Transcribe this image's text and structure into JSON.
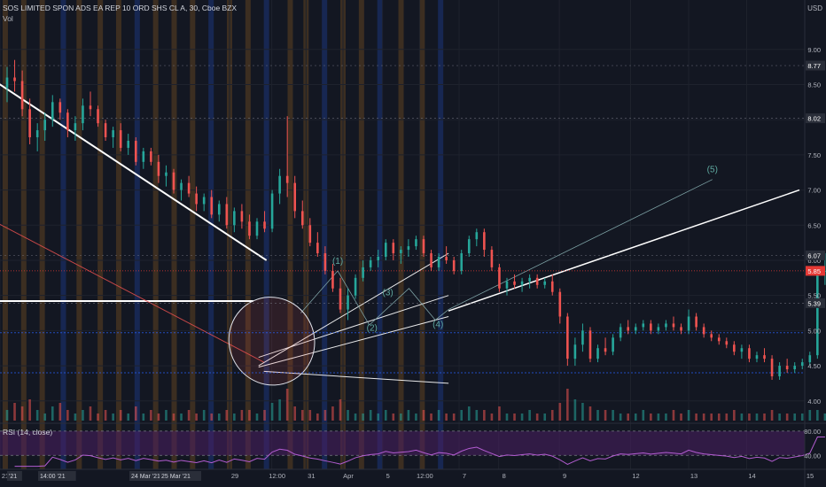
{
  "header": {
    "symbol_text": "SOS LIMITED SPON ADS EA REP 10 ORD SHS CL A, 30, Cboe BZX",
    "volume_label": "Vol",
    "currency": "USD",
    "rsi_label": "RSI (14, close)"
  },
  "colors": {
    "background": "#131722",
    "up": "#26a69a",
    "down": "#ef5350",
    "session_orange": "#e08a1e",
    "session_blue": "#2962ff",
    "rsi_line": "#b35cd1",
    "rsi_band": "#4a1f63",
    "trendline": "#ffffff",
    "wave_line": "#7ea3a6",
    "wave_label": "#5fa9a0",
    "price_tag": "#e53935",
    "neutral_tag": "#2a2e39"
  },
  "chart_data": [
    {
      "type": "candlestick",
      "price_axis": {
        "range": [
          3.72,
          9.35
        ],
        "ticks": [
          "9.00",
          "8.50",
          "8.00",
          "7.50",
          "7.00",
          "6.50",
          "6.00",
          "5.50",
          "5.00",
          "4.50",
          "4.00"
        ],
        "tagged_levels": [
          {
            "label": "8.77",
            "value": 8.77,
            "kind": "neutral"
          },
          {
            "label": "8.02",
            "value": 8.02,
            "kind": "neutral"
          },
          {
            "label": "6.07",
            "value": 6.07,
            "kind": "neutral"
          },
          {
            "label": "5.85",
            "value": 5.85,
            "kind": "last"
          },
          {
            "label": "5.39",
            "value": 5.39,
            "kind": "neutral"
          }
        ]
      },
      "time_axis": {
        "range": [
          0,
          305
        ],
        "ticks": [
          {
            "label": "21",
            "t": 0
          },
          {
            "label": "29",
            "t": 87
          },
          {
            "label": "12:00",
            "t": 103
          },
          {
            "label": "31",
            "t": 116
          },
          {
            "label": "Apr",
            "t": 130
          },
          {
            "label": "5",
            "t": 145
          },
          {
            "label": "12:00",
            "t": 159
          },
          {
            "label": "7",
            "t": 174
          },
          {
            "label": "8",
            "t": 189
          },
          {
            "label": "9",
            "t": 212
          },
          {
            "label": "12",
            "t": 239
          },
          {
            "label": "13",
            "t": 261
          },
          {
            "label": "14",
            "t": 283
          },
          {
            "label": "15",
            "t": 305
          }
        ],
        "crosshair_labels": [
          "'21",
          "14:00 '21",
          "24 Mar '21",
          "25 Mar '21"
        ]
      },
      "candles": [
        [
          8.45,
          8.75,
          8.25,
          8.6
        ],
        [
          8.6,
          8.85,
          8.4,
          8.55
        ],
        [
          8.55,
          8.7,
          8.05,
          8.15
        ],
        [
          8.15,
          8.3,
          7.65,
          7.75
        ],
        [
          7.75,
          7.95,
          7.55,
          7.85
        ],
        [
          7.85,
          8.1,
          7.7,
          8.0
        ],
        [
          8.0,
          8.35,
          7.9,
          8.25
        ],
        [
          8.25,
          8.3,
          8.0,
          8.1
        ],
        [
          8.1,
          8.15,
          7.75,
          7.85
        ],
        [
          7.85,
          8.05,
          7.7,
          7.95
        ],
        [
          7.95,
          8.3,
          7.85,
          8.2
        ],
        [
          8.2,
          8.4,
          8.05,
          8.15
        ],
        [
          8.15,
          8.2,
          7.9,
          7.95
        ],
        [
          7.95,
          8.0,
          7.7,
          7.75
        ],
        [
          7.75,
          7.9,
          7.6,
          7.85
        ],
        [
          7.85,
          7.95,
          7.55,
          7.6
        ],
        [
          7.6,
          7.8,
          7.5,
          7.7
        ],
        [
          7.7,
          7.75,
          7.35,
          7.4
        ],
        [
          7.4,
          7.6,
          7.3,
          7.55
        ],
        [
          7.55,
          7.6,
          7.35,
          7.4
        ],
        [
          7.4,
          7.5,
          7.1,
          7.2
        ],
        [
          7.2,
          7.35,
          7.05,
          7.25
        ],
        [
          7.25,
          7.3,
          6.95,
          7.0
        ],
        [
          7.0,
          7.15,
          6.85,
          7.1
        ],
        [
          7.1,
          7.2,
          6.9,
          6.95
        ],
        [
          6.95,
          7.05,
          6.7,
          6.8
        ],
        [
          6.8,
          6.95,
          6.7,
          6.9
        ],
        [
          6.9,
          7.0,
          6.6,
          6.65
        ],
        [
          6.65,
          6.85,
          6.55,
          6.8
        ],
        [
          6.8,
          6.9,
          6.45,
          6.5
        ],
        [
          6.5,
          6.75,
          6.4,
          6.7
        ],
        [
          6.7,
          6.8,
          6.45,
          6.55
        ],
        [
          6.55,
          6.65,
          6.3,
          6.35
        ],
        [
          6.35,
          6.6,
          6.3,
          6.55
        ],
        [
          6.55,
          6.7,
          6.4,
          6.45
        ],
        [
          6.45,
          7.0,
          6.4,
          6.95
        ],
        [
          6.95,
          7.3,
          6.8,
          7.2
        ],
        [
          7.2,
          8.05,
          6.9,
          7.1
        ],
        [
          7.1,
          7.2,
          6.6,
          6.7
        ],
        [
          6.7,
          6.85,
          6.45,
          6.5
        ],
        [
          6.5,
          6.6,
          6.2,
          6.25
        ],
        [
          6.25,
          6.4,
          6.05,
          6.1
        ],
        [
          6.1,
          6.2,
          5.8,
          5.85
        ],
        [
          5.85,
          5.95,
          5.55,
          5.6
        ],
        [
          5.6,
          5.75,
          5.25,
          5.3
        ],
        [
          5.3,
          5.6,
          5.15,
          5.5
        ],
        [
          5.5,
          5.8,
          5.45,
          5.75
        ],
        [
          5.75,
          6.0,
          5.7,
          5.9
        ],
        [
          5.9,
          6.05,
          5.85,
          6.0
        ],
        [
          6.0,
          6.15,
          5.9,
          6.05
        ],
        [
          6.05,
          6.3,
          6.0,
          6.25
        ],
        [
          6.25,
          6.3,
          6.0,
          6.1
        ],
        [
          6.1,
          6.2,
          5.95,
          6.15
        ],
        [
          6.15,
          6.3,
          6.05,
          6.2
        ],
        [
          6.2,
          6.35,
          6.15,
          6.3
        ],
        [
          6.3,
          6.35,
          6.05,
          6.1
        ],
        [
          6.1,
          6.15,
          5.85,
          5.9
        ],
        [
          5.9,
          6.1,
          5.85,
          6.05
        ],
        [
          6.05,
          6.2,
          5.95,
          6.0
        ],
        [
          6.0,
          6.05,
          5.8,
          5.85
        ],
        [
          5.85,
          6.15,
          5.8,
          6.1
        ],
        [
          6.1,
          6.35,
          6.05,
          6.3
        ],
        [
          6.3,
          6.45,
          6.2,
          6.4
        ],
        [
          6.4,
          6.45,
          6.05,
          6.15
        ],
        [
          6.15,
          6.2,
          5.85,
          5.9
        ],
        [
          5.9,
          5.95,
          5.55,
          5.6
        ],
        [
          5.6,
          5.75,
          5.5,
          5.7
        ],
        [
          5.7,
          5.8,
          5.6,
          5.65
        ],
        [
          5.65,
          5.75,
          5.55,
          5.7
        ],
        [
          5.7,
          5.8,
          5.6,
          5.75
        ],
        [
          5.75,
          5.8,
          5.6,
          5.65
        ],
        [
          5.65,
          5.75,
          5.6,
          5.7
        ],
        [
          5.7,
          5.8,
          5.5,
          5.55
        ],
        [
          5.55,
          5.6,
          5.1,
          5.2
        ],
        [
          5.2,
          5.25,
          4.5,
          4.6
        ],
        [
          4.6,
          4.9,
          4.5,
          4.8
        ],
        [
          4.8,
          5.1,
          4.7,
          5.0
        ],
        [
          5.0,
          5.05,
          4.55,
          4.6
        ],
        [
          4.6,
          4.8,
          4.55,
          4.75
        ],
        [
          4.75,
          4.9,
          4.65,
          4.7
        ],
        [
          4.7,
          4.95,
          4.65,
          4.9
        ],
        [
          4.9,
          5.1,
          4.85,
          5.05
        ],
        [
          5.05,
          5.15,
          4.95,
          5.0
        ],
        [
          5.0,
          5.1,
          4.95,
          5.05
        ],
        [
          5.05,
          5.15,
          5.0,
          5.1
        ],
        [
          5.1,
          5.15,
          4.95,
          5.0
        ],
        [
          5.0,
          5.1,
          4.95,
          5.05
        ],
        [
          5.05,
          5.15,
          5.0,
          5.1
        ],
        [
          5.1,
          5.2,
          5.0,
          5.05
        ],
        [
          5.05,
          5.1,
          4.95,
          5.0
        ],
        [
          5.0,
          5.3,
          4.95,
          5.2
        ],
        [
          5.2,
          5.25,
          5.0,
          5.05
        ],
        [
          5.05,
          5.1,
          4.9,
          4.95
        ],
        [
          4.95,
          5.0,
          4.85,
          4.9
        ],
        [
          4.9,
          4.95,
          4.8,
          4.85
        ],
        [
          4.85,
          4.9,
          4.75,
          4.8
        ],
        [
          4.8,
          4.85,
          4.65,
          4.7
        ],
        [
          4.7,
          4.8,
          4.6,
          4.75
        ],
        [
          4.75,
          4.8,
          4.55,
          4.6
        ],
        [
          4.6,
          4.7,
          4.55,
          4.65
        ],
        [
          4.65,
          4.75,
          4.55,
          4.6
        ],
        [
          4.6,
          4.65,
          4.3,
          4.35
        ],
        [
          4.35,
          4.55,
          4.3,
          4.5
        ],
        [
          4.5,
          4.6,
          4.4,
          4.45
        ],
        [
          4.45,
          4.55,
          4.4,
          4.5
        ],
        [
          4.5,
          4.6,
          4.45,
          4.55
        ],
        [
          4.55,
          4.7,
          4.5,
          4.65
        ],
        [
          4.65,
          5.9,
          4.6,
          5.85
        ],
        [
          5.85,
          6.1,
          5.65,
          5.85
        ]
      ],
      "candle_time_positions": [
        0,
        310
      ],
      "volume": [
        3,
        5,
        4,
        6,
        3,
        2,
        4,
        5,
        3,
        2,
        3,
        4,
        2,
        3,
        2,
        3,
        2,
        4,
        2,
        3,
        2,
        3,
        2,
        2,
        3,
        2,
        3,
        2,
        2,
        3,
        2,
        3,
        3,
        2,
        3,
        5,
        6,
        9,
        4,
        3,
        3,
        2,
        3,
        4,
        6,
        3,
        2,
        2,
        3,
        2,
        3,
        2,
        2,
        3,
        2,
        3,
        2,
        3,
        2,
        2,
        3,
        4,
        3,
        3,
        2,
        4,
        2,
        2,
        2,
        3,
        2,
        2,
        3,
        5,
        9,
        6,
        5,
        4,
        3,
        3,
        3,
        2,
        2,
        2,
        3,
        2,
        2,
        2,
        3,
        2,
        3,
        2,
        2,
        2,
        2,
        2,
        3,
        2,
        2,
        2,
        2,
        3,
        2,
        2,
        2,
        2,
        3,
        3,
        2
      ],
      "vertical_bands": [
        {
          "t": 2,
          "color": "orange"
        },
        {
          "t": 9,
          "color": "orange"
        },
        {
          "t": 16,
          "color": "orange"
        },
        {
          "t": 24,
          "color": "blue"
        },
        {
          "t": 30,
          "color": "orange"
        },
        {
          "t": 38,
          "color": "orange"
        },
        {
          "t": 45,
          "color": "orange"
        },
        {
          "t": 52,
          "color": "blue"
        },
        {
          "t": 59,
          "color": "orange"
        },
        {
          "t": 66,
          "color": "orange"
        },
        {
          "t": 73,
          "color": "orange"
        },
        {
          "t": 80,
          "color": "blue"
        },
        {
          "t": 87,
          "color": "orange"
        },
        {
          "t": 94,
          "color": "orange"
        },
        {
          "t": 101,
          "color": "blue"
        },
        {
          "t": 110,
          "color": "orange"
        },
        {
          "t": 116,
          "color": "orange"
        },
        {
          "t": 123,
          "color": "blue"
        },
        {
          "t": 130,
          "color": "orange"
        },
        {
          "t": 137,
          "color": "orange"
        },
        {
          "t": 144,
          "color": "blue"
        },
        {
          "t": 152,
          "color": "orange"
        },
        {
          "t": 160,
          "color": "orange"
        },
        {
          "t": 167,
          "color": "blue"
        }
      ],
      "wave_labels": [
        "(1)",
        "(2)",
        "(3)",
        "(4)",
        "(5)"
      ]
    },
    {
      "type": "line",
      "title": "RSI (14, close)",
      "ylim": [
        20,
        90
      ],
      "ticks": [
        "80.00",
        "40.00"
      ],
      "band": [
        40,
        80
      ]
    }
  ]
}
